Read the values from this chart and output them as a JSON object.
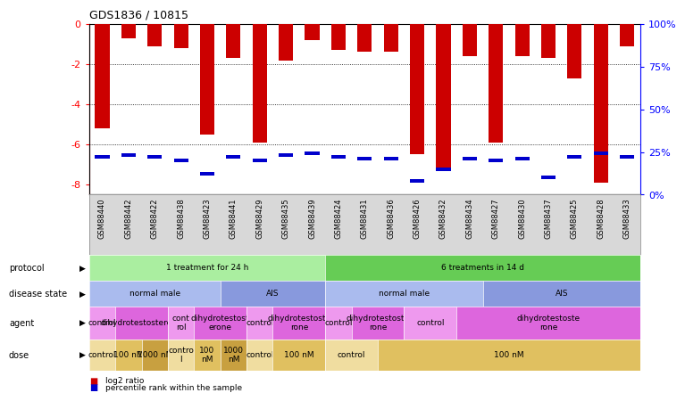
{
  "title": "GDS1836 / 10815",
  "samples": [
    "GSM88440",
    "GSM88442",
    "GSM88422",
    "GSM88438",
    "GSM88423",
    "GSM88441",
    "GSM88429",
    "GSM88435",
    "GSM88439",
    "GSM88424",
    "GSM88431",
    "GSM88436",
    "GSM88426",
    "GSM88432",
    "GSM88434",
    "GSM88427",
    "GSM88430",
    "GSM88437",
    "GSM88425",
    "GSM88428",
    "GSM88433"
  ],
  "log2_ratio": [
    -5.2,
    -0.7,
    -1.1,
    -1.2,
    -5.5,
    -1.7,
    -5.9,
    -1.8,
    -0.8,
    -1.3,
    -1.4,
    -1.4,
    -6.5,
    -7.2,
    -1.6,
    -5.9,
    -1.6,
    -1.7,
    -2.7,
    -7.9,
    -1.1
  ],
  "percentile": [
    22,
    23,
    22,
    20,
    12,
    22,
    20,
    23,
    24,
    22,
    21,
    21,
    8,
    15,
    21,
    20,
    21,
    10,
    22,
    24,
    22
  ],
  "bar_color": "#cc0000",
  "pct_color": "#0000cc",
  "ylim_left": [
    -8.5,
    0.0
  ],
  "ylim_right": [
    0,
    100
  ],
  "yticks_left": [
    0,
    -2,
    -4,
    -6,
    -8
  ],
  "yticks_right": [
    0,
    25,
    50,
    75,
    100
  ],
  "protocol_segments": [
    {
      "text": "1 treatment for 24 h",
      "start": 0,
      "end": 9,
      "color": "#aaeea0"
    },
    {
      "text": "6 treatments in 14 d",
      "start": 9,
      "end": 21,
      "color": "#66cc55"
    }
  ],
  "disease_segments": [
    {
      "text": "normal male",
      "start": 0,
      "end": 5,
      "color": "#aabbee"
    },
    {
      "text": "AIS",
      "start": 5,
      "end": 9,
      "color": "#8899dd"
    },
    {
      "text": "normal male",
      "start": 9,
      "end": 15,
      "color": "#aabbee"
    },
    {
      "text": "AIS",
      "start": 15,
      "end": 21,
      "color": "#8899dd"
    }
  ],
  "agent_segments": [
    {
      "text": "control",
      "start": 0,
      "end": 1,
      "color": "#ee99ee"
    },
    {
      "text": "dihydrotestosterone",
      "start": 1,
      "end": 3,
      "color": "#dd66dd"
    },
    {
      "text": "cont\nrol",
      "start": 3,
      "end": 4,
      "color": "#ee99ee"
    },
    {
      "text": "dihydrotestost\nerone",
      "start": 4,
      "end": 6,
      "color": "#dd66dd"
    },
    {
      "text": "control",
      "start": 6,
      "end": 7,
      "color": "#ee99ee"
    },
    {
      "text": "dihydrotestoste\nrone",
      "start": 7,
      "end": 9,
      "color": "#dd66dd"
    },
    {
      "text": "control",
      "start": 9,
      "end": 10,
      "color": "#ee99ee"
    },
    {
      "text": "dihydrotestoste\nrone",
      "start": 10,
      "end": 12,
      "color": "#dd66dd"
    },
    {
      "text": "control",
      "start": 12,
      "end": 14,
      "color": "#ee99ee"
    },
    {
      "text": "dihydrotestoste\nrone",
      "start": 14,
      "end": 21,
      "color": "#dd66dd"
    }
  ],
  "dose_segments": [
    {
      "text": "control",
      "start": 0,
      "end": 1,
      "color": "#f0dda0"
    },
    {
      "text": "100 nM",
      "start": 1,
      "end": 2,
      "color": "#e0c060"
    },
    {
      "text": "1000 nM",
      "start": 2,
      "end": 3,
      "color": "#c8a040"
    },
    {
      "text": "contro\nl",
      "start": 3,
      "end": 4,
      "color": "#f0dda0"
    },
    {
      "text": "100\nnM",
      "start": 4,
      "end": 5,
      "color": "#e0c060"
    },
    {
      "text": "1000\nnM",
      "start": 5,
      "end": 6,
      "color": "#c8a040"
    },
    {
      "text": "control",
      "start": 6,
      "end": 7,
      "color": "#f0dda0"
    },
    {
      "text": "100 nM",
      "start": 7,
      "end": 9,
      "color": "#e0c060"
    },
    {
      "text": "control",
      "start": 9,
      "end": 11,
      "color": "#f0dda0"
    },
    {
      "text": "100 nM",
      "start": 11,
      "end": 21,
      "color": "#e0c060"
    }
  ],
  "row_labels": [
    "protocol",
    "disease state",
    "agent",
    "dose"
  ],
  "background_color": "#ffffff",
  "xtick_bg": "#d8d8d8"
}
